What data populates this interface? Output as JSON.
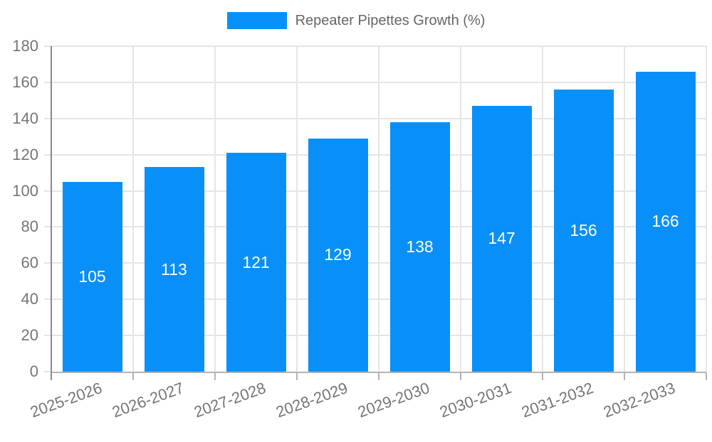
{
  "legend": {
    "label": "Repeater Pipettes Growth (%)"
  },
  "chart_data": {
    "type": "bar",
    "title": "Repeater Pipettes Growth (%)",
    "categories": [
      "2025-2026",
      "2026-2027",
      "2027-2028",
      "2028-2029",
      "2029-2030",
      "2030-2031",
      "2031-2032",
      "2032-2033"
    ],
    "values": [
      105,
      113,
      121,
      129,
      138,
      147,
      156,
      166
    ],
    "xlabel": "",
    "ylabel": "",
    "ylim": [
      0,
      180
    ],
    "yticks": [
      0,
      20,
      40,
      60,
      80,
      100,
      120,
      140,
      160,
      180
    ],
    "grid": true,
    "legend_position": "top",
    "bar_value_labels": true
  },
  "colors": {
    "bar": "#0990f8",
    "grid": "#e5e5e5",
    "axis_y_line": "#8a8a8a",
    "axis_x_line": "#b3b3b3",
    "tick_label": "#757575",
    "legend_text": "#666666",
    "bar_value_text": "#ffffff",
    "background": "#ffffff"
  }
}
